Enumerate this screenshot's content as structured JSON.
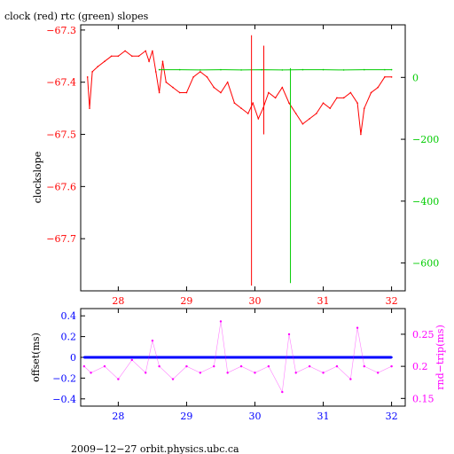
{
  "chart_data": [
    {
      "type": "line",
      "title": "clock (red) rtc (green) slopes",
      "ylabel": "clockslope",
      "xlim": [
        27.45,
        32.2
      ],
      "x_ticks": [
        28,
        29,
        30,
        31,
        32
      ],
      "x_tick_labels": [
        "28",
        "29",
        "30",
        "31",
        "32"
      ],
      "ylim_left": [
        -67.8,
        -67.29
      ],
      "y_ticks_left": [
        -67.3,
        -67.4,
        -67.5,
        -67.6,
        -67.7
      ],
      "y_tick_labels_left": [
        "−67.3",
        "−67.4",
        "−67.5",
        "−67.6",
        "−67.7"
      ],
      "ylim_right": [
        -690,
        170
      ],
      "y_ticks_right": [
        0,
        -200,
        -400,
        -600
      ],
      "y_tick_labels_right": [
        "0",
        "−200",
        "−400",
        "−600"
      ],
      "series": [
        {
          "name": "clock",
          "color": "#ff0000",
          "axis": "left",
          "x": [
            27.55,
            27.58,
            27.62,
            27.7,
            27.8,
            27.9,
            28.0,
            28.1,
            28.2,
            28.3,
            28.4,
            28.45,
            28.5,
            28.55,
            28.6,
            28.65,
            28.7,
            28.8,
            28.9,
            29.0,
            29.1,
            29.2,
            29.3,
            29.4,
            29.5,
            29.6,
            29.7,
            29.8,
            29.9,
            29.97,
            30.05,
            30.12,
            30.2,
            30.3,
            30.4,
            30.5,
            30.6,
            30.7,
            30.8,
            30.9,
            31.0,
            31.1,
            31.2,
            31.3,
            31.4,
            31.5,
            31.55,
            31.6,
            31.7,
            31.8,
            31.9,
            32.0
          ],
          "y": [
            -67.39,
            -67.45,
            -67.38,
            -67.37,
            -67.36,
            -67.35,
            -67.35,
            -67.34,
            -67.35,
            -67.35,
            -67.34,
            -67.36,
            -67.34,
            -67.38,
            -67.42,
            -67.36,
            -67.4,
            -67.41,
            -67.42,
            -67.42,
            -67.39,
            -67.38,
            -67.39,
            -67.41,
            -67.42,
            -67.4,
            -67.44,
            -67.45,
            -67.46,
            -67.44,
            -67.47,
            -67.45,
            -67.42,
            -67.43,
            -67.41,
            -67.44,
            -67.46,
            -67.48,
            -67.47,
            -67.46,
            -67.44,
            -67.45,
            -67.43,
            -67.43,
            -67.42,
            -67.44,
            -67.5,
            -67.45,
            -67.42,
            -67.41,
            -67.39,
            -67.39
          ]
        },
        {
          "name": "rtc",
          "color": "#00cc00",
          "axis": "right",
          "x": [
            28.6,
            28.9,
            29.2,
            29.5,
            29.8,
            30.1,
            30.4,
            30.7,
            31.0,
            31.3,
            31.6,
            31.9,
            32.0
          ],
          "y": [
            25,
            25,
            24,
            25,
            24,
            25,
            24,
            25,
            25,
            24,
            25,
            25,
            25
          ]
        }
      ],
      "spikes": [
        {
          "series": "clock",
          "x": 29.95,
          "y_top": -67.31,
          "y_bottom": -67.79
        },
        {
          "series": "clock",
          "x": 30.13,
          "y_top": -67.33,
          "y_bottom": -67.5
        },
        {
          "series": "rtc",
          "x": 30.52,
          "y_top": 30,
          "y_bottom": -665
        }
      ]
    },
    {
      "type": "scatter",
      "xlim": [
        27.45,
        32.2
      ],
      "x_ticks": [
        28,
        29,
        30,
        31,
        32
      ],
      "x_tick_labels": [
        "28",
        "29",
        "30",
        "31",
        "32"
      ],
      "ylabel_left": "offset(ms)",
      "ylim_left": [
        -0.47,
        0.47
      ],
      "y_ticks_left": [
        0.4,
        0.2,
        0,
        -0.2,
        -0.4
      ],
      "y_tick_labels_left": [
        "0.4",
        "0.2",
        "0",
        "−0.2",
        "−0.4"
      ],
      "ylabel_right": "rnd−trip(ms)",
      "ylim_right": [
        0.138,
        0.29
      ],
      "y_ticks_right": [
        0.25,
        0.2,
        0.15
      ],
      "y_tick_labels_right": [
        "0.25",
        "0.2",
        "0.15"
      ],
      "series": [
        {
          "name": "offset",
          "color": "#0000ff",
          "axis": "left",
          "x": [
            27.5,
            27.6,
            27.8,
            28.0,
            28.2,
            28.4,
            28.6,
            28.8,
            29.0,
            29.2,
            29.4,
            29.6,
            29.8,
            30.0,
            30.2,
            30.4,
            30.6,
            30.8,
            31.0,
            31.2,
            31.4,
            31.6,
            31.8,
            32.0
          ],
          "y": [
            0.0,
            0.0,
            0.0,
            0.0,
            0.0,
            0.0,
            0.0,
            0.0,
            0.0,
            0.0,
            0.0,
            0.0,
            0.0,
            0.0,
            0.0,
            0.0,
            0.0,
            0.0,
            0.0,
            0.0,
            0.0,
            0.0,
            0.0,
            0.0
          ]
        },
        {
          "name": "rnd-trip",
          "color": "#ff00ff",
          "axis": "right",
          "x": [
            27.5,
            27.6,
            27.8,
            28.0,
            28.2,
            28.4,
            28.5,
            28.6,
            28.8,
            29.0,
            29.2,
            29.4,
            29.5,
            29.6,
            29.8,
            30.0,
            30.2,
            30.4,
            30.5,
            30.6,
            30.8,
            31.0,
            31.2,
            31.4,
            31.5,
            31.6,
            31.8,
            32.0
          ],
          "y": [
            0.2,
            0.19,
            0.2,
            0.18,
            0.21,
            0.19,
            0.24,
            0.2,
            0.18,
            0.2,
            0.19,
            0.2,
            0.27,
            0.19,
            0.2,
            0.19,
            0.2,
            0.16,
            0.25,
            0.19,
            0.2,
            0.19,
            0.2,
            0.18,
            0.26,
            0.2,
            0.19,
            0.2
          ]
        }
      ]
    }
  ],
  "footer": "2009−12−27  orbit.physics.ubc.ca"
}
